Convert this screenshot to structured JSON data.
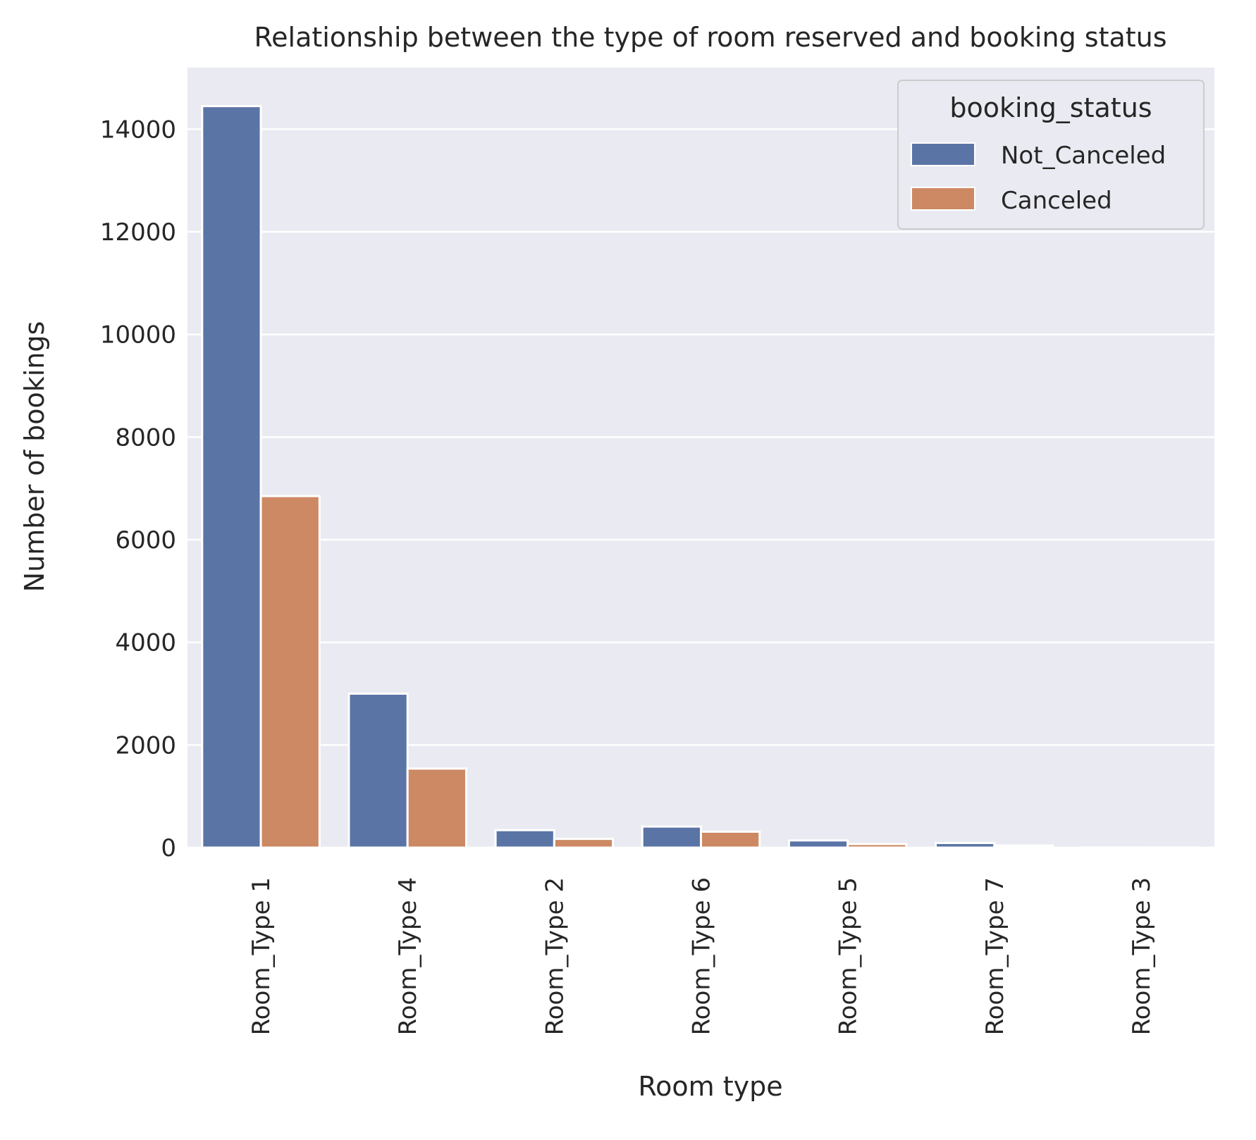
{
  "chart_data": {
    "type": "bar",
    "title": "Relationship between the type of room reserved and booking status",
    "xlabel": "Room type",
    "ylabel": "Number of bookings",
    "categories": [
      "Room_Type 1",
      "Room_Type 4",
      "Room_Type 2",
      "Room_Type 6",
      "Room_Type 5",
      "Room_Type 7",
      "Room_Type 3"
    ],
    "series": [
      {
        "name": "Not_Canceled",
        "color": "#5b74a6",
        "values": [
          14450,
          3000,
          340,
          410,
          140,
          90,
          5
        ]
      },
      {
        "name": "Canceled",
        "color": "#cc8963",
        "values": [
          6850,
          1540,
          170,
          310,
          70,
          40,
          2
        ]
      }
    ],
    "ylim": [
      0,
      15200
    ],
    "yticks": [
      0,
      2000,
      4000,
      6000,
      8000,
      10000,
      12000,
      14000
    ],
    "legend": {
      "title": "booking_status",
      "placement": "top-right"
    },
    "grid": true,
    "background": "#eaeaf2"
  }
}
